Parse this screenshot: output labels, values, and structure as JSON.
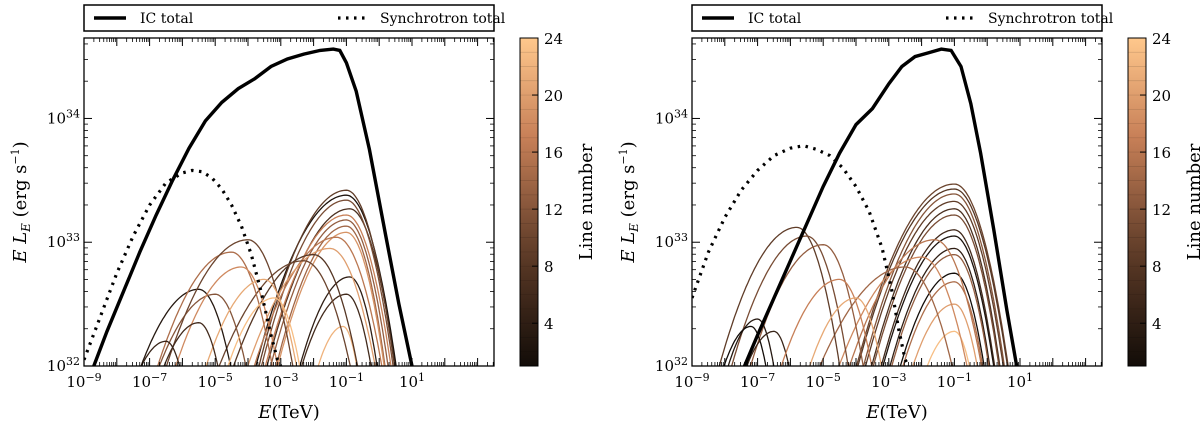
{
  "chart_data": [
    {
      "type": "line",
      "panel": "left",
      "xlabel": "E(TeV)",
      "ylabel": "E L_E (erg s^-1)",
      "xscale": "log",
      "yscale": "log",
      "xlim_log10": [
        -9,
        3.5
      ],
      "ylim_log10": [
        32,
        34.65
      ],
      "x_ticks": [
        "10^-9",
        "10^-7",
        "10^-5",
        "10^-3",
        "10^-1",
        "10^1"
      ],
      "y_ticks": [
        "10^32",
        "10^33",
        "10^34"
      ],
      "legend": {
        "placement": "top",
        "entries": [
          {
            "label": "IC total",
            "style": "solid"
          },
          {
            "label": "Synchrotron total",
            "style": "dotted"
          }
        ]
      },
      "series": [
        {
          "name": "IC total",
          "log_x": [
            -8.7,
            -8.3,
            -7.8,
            -7.3,
            -6.8,
            -6.3,
            -5.8,
            -5.3,
            -4.8,
            -4.3,
            -3.8,
            -3.3,
            -2.8,
            -2.3,
            -1.8,
            -1.4,
            -1.2,
            -1.0,
            -0.7,
            -0.3,
            0.2,
            0.6,
            1.0
          ],
          "log_y": [
            32.0,
            32.28,
            32.6,
            32.92,
            33.22,
            33.5,
            33.76,
            33.98,
            34.13,
            34.24,
            34.32,
            34.42,
            34.48,
            34.52,
            34.55,
            34.56,
            34.55,
            34.45,
            34.22,
            33.75,
            33.05,
            32.5,
            32.0
          ]
        },
        {
          "name": "Synchrotron total",
          "log_x": [
            -9.0,
            -8.5,
            -8.0,
            -7.5,
            -7.0,
            -6.5,
            -6.0,
            -5.7,
            -5.4,
            -5.1,
            -4.8,
            -4.5,
            -4.2,
            -3.9,
            -3.6,
            -3.3,
            -3.1,
            -3.0
          ],
          "log_y": [
            32.05,
            32.4,
            32.75,
            33.05,
            33.3,
            33.48,
            33.56,
            33.58,
            33.57,
            33.52,
            33.43,
            33.3,
            33.13,
            32.9,
            32.6,
            32.25,
            32.05,
            32.0
          ]
        }
      ],
      "components": [
        {
          "line": 4,
          "kind": "ic",
          "center": -0.9,
          "peak": 32.72,
          "width": 1.6
        },
        {
          "line": 7,
          "kind": "ic",
          "center": -0.9,
          "peak": 33.27,
          "width": 2.0
        },
        {
          "line": 2,
          "kind": "ic",
          "center": -1.0,
          "peak": 33.38,
          "width": 2.1
        },
        {
          "line": 9,
          "kind": "ic",
          "center": -1.0,
          "peak": 33.42,
          "width": 2.0
        },
        {
          "line": 11,
          "kind": "ic",
          "center": -1.0,
          "peak": 33.34,
          "width": 2.0
        },
        {
          "line": 6,
          "kind": "ic",
          "center": -1.0,
          "peak": 32.58,
          "width": 1.6
        },
        {
          "line": 13,
          "kind": "ic",
          "center": -1.0,
          "peak": 33.18,
          "width": 1.9
        },
        {
          "line": 14,
          "kind": "ic",
          "center": -1.0,
          "peak": 33.13,
          "width": 1.8
        },
        {
          "line": 17,
          "kind": "ic",
          "center": -1.0,
          "peak": 33.22,
          "width": 2.0
        },
        {
          "line": 19,
          "kind": "ic",
          "center": -1.0,
          "peak": 33.08,
          "width": 1.8
        },
        {
          "line": 22,
          "kind": "ic",
          "center": -1.1,
          "peak": 32.32,
          "width": 1.2
        },
        {
          "line": 16,
          "kind": "ic",
          "center": -1.3,
          "peak": 33.04,
          "width": 2.2
        },
        {
          "line": 20,
          "kind": "ic",
          "center": -1.5,
          "peak": 32.95,
          "width": 2.3
        },
        {
          "line": 8,
          "kind": "ic",
          "center": -2.0,
          "peak": 32.9,
          "width": 2.3
        },
        {
          "line": 10,
          "kind": "ic",
          "center": -2.3,
          "peak": 32.85,
          "width": 2.5
        },
        {
          "line": 3,
          "kind": "sync",
          "center": -5.5,
          "peak": 32.62,
          "width": 2.0
        },
        {
          "line": 12,
          "kind": "sync",
          "center": -5.0,
          "peak": 32.58,
          "width": 2.0
        },
        {
          "line": 15,
          "kind": "sync",
          "center": -4.5,
          "peak": 32.92,
          "width": 2.1
        },
        {
          "line": 10,
          "kind": "sync",
          "center": -4.0,
          "peak": 33.02,
          "width": 2.2
        },
        {
          "line": 18,
          "kind": "sync",
          "center": -4.2,
          "peak": 32.8,
          "width": 2.0
        },
        {
          "line": 21,
          "kind": "sync",
          "center": -3.5,
          "peak": 32.7,
          "width": 1.9
        },
        {
          "line": 6,
          "kind": "sync",
          "center": -5.5,
          "peak": 32.35,
          "width": 1.6
        },
        {
          "line": 5,
          "kind": "sync",
          "center": -6.5,
          "peak": 32.2,
          "width": 1.5
        },
        {
          "line": 23,
          "kind": "sync",
          "center": -3.2,
          "peak": 32.55,
          "width": 1.7
        }
      ],
      "colorbar": {
        "label": "Line number",
        "min": 1,
        "max": 24,
        "ticks": [
          4,
          8,
          12,
          16,
          20,
          24
        ]
      }
    },
    {
      "type": "line",
      "panel": "right",
      "xlabel": "E(TeV)",
      "ylabel": "E L_E (erg s^-1)",
      "xscale": "log",
      "yscale": "log",
      "xlim_log10": [
        -9,
        3.5
      ],
      "ylim_log10": [
        32,
        34.65
      ],
      "x_ticks": [
        "10^-9",
        "10^-7",
        "10^-5",
        "10^-3",
        "10^-1",
        "10^1"
      ],
      "y_ticks": [
        "10^32",
        "10^33",
        "10^34"
      ],
      "legend": {
        "placement": "top",
        "entries": [
          {
            "label": "IC total",
            "style": "solid"
          },
          {
            "label": "Synchrotron total",
            "style": "dotted"
          }
        ]
      },
      "series": [
        {
          "name": "IC total",
          "log_x": [
            -7.4,
            -7.0,
            -6.5,
            -6.0,
            -5.5,
            -5.0,
            -4.5,
            -4.0,
            -3.5,
            -3.0,
            -2.6,
            -2.2,
            -1.8,
            -1.4,
            -1.1,
            -0.8,
            -0.5,
            -0.2,
            0.2,
            0.6,
            0.9
          ],
          "log_y": [
            32.0,
            32.25,
            32.55,
            32.85,
            33.15,
            33.45,
            33.72,
            33.95,
            34.08,
            34.28,
            34.42,
            34.5,
            34.53,
            34.56,
            34.55,
            34.42,
            34.12,
            33.72,
            33.1,
            32.45,
            32.0
          ]
        },
        {
          "name": "Synchrotron total",
          "log_x": [
            -9.0,
            -8.5,
            -8.0,
            -7.5,
            -7.0,
            -6.5,
            -6.0,
            -5.6,
            -5.2,
            -4.8,
            -4.4,
            -4.0,
            -3.6,
            -3.2,
            -2.9,
            -2.7,
            -2.5,
            -2.4
          ],
          "log_y": [
            32.55,
            32.92,
            33.2,
            33.42,
            33.58,
            33.7,
            33.76,
            33.78,
            33.75,
            33.7,
            33.6,
            33.45,
            33.25,
            32.95,
            32.6,
            32.3,
            32.05,
            32.0
          ]
        }
      ],
      "components": [
        {
          "line": 10,
          "kind": "ic",
          "center": -1.0,
          "peak": 33.47,
          "width": 2.2
        },
        {
          "line": 8,
          "kind": "ic",
          "center": -1.0,
          "peak": 33.43,
          "width": 2.2
        },
        {
          "line": 12,
          "kind": "ic",
          "center": -1.0,
          "peak": 33.39,
          "width": 2.1
        },
        {
          "line": 9,
          "kind": "ic",
          "center": -1.0,
          "peak": 33.33,
          "width": 2.1
        },
        {
          "line": 7,
          "kind": "ic",
          "center": -1.0,
          "peak": 33.27,
          "width": 2.0
        },
        {
          "line": 11,
          "kind": "ic",
          "center": -1.0,
          "peak": 33.22,
          "width": 2.0
        },
        {
          "line": 6,
          "kind": "ic",
          "center": -1.0,
          "peak": 33.1,
          "width": 1.9
        },
        {
          "line": 2,
          "kind": "ic",
          "center": -1.0,
          "peak": 33.05,
          "width": 1.9
        },
        {
          "line": 4,
          "kind": "ic",
          "center": -1.0,
          "peak": 32.95,
          "width": 1.8
        },
        {
          "line": 13,
          "kind": "ic",
          "center": -1.0,
          "peak": 32.9,
          "width": 1.8
        },
        {
          "line": 1,
          "kind": "ic",
          "center": -1.0,
          "peak": 32.75,
          "width": 1.7
        },
        {
          "line": 15,
          "kind": "ic",
          "center": -1.0,
          "peak": 32.68,
          "width": 1.7
        },
        {
          "line": 20,
          "kind": "ic",
          "center": -1.0,
          "peak": 32.5,
          "width": 1.6
        },
        {
          "line": 23,
          "kind": "ic",
          "center": -1.0,
          "peak": 32.28,
          "width": 1.4
        },
        {
          "line": 16,
          "kind": "ic",
          "center": -1.6,
          "peak": 33.02,
          "width": 2.3
        },
        {
          "line": 18,
          "kind": "ic",
          "center": -2.0,
          "peak": 32.88,
          "width": 2.4
        },
        {
          "line": 14,
          "kind": "ic",
          "center": -2.5,
          "peak": 32.8,
          "width": 2.6
        },
        {
          "line": 9,
          "kind": "sync",
          "center": -5.8,
          "peak": 33.12,
          "width": 2.0
        },
        {
          "line": 11,
          "kind": "sync",
          "center": -5.5,
          "peak": 33.05,
          "width": 2.0
        },
        {
          "line": 13,
          "kind": "sync",
          "center": -5.0,
          "peak": 32.98,
          "width": 2.0
        },
        {
          "line": 3,
          "kind": "sync",
          "center": -7.0,
          "peak": 32.38,
          "width": 1.3
        },
        {
          "line": 1,
          "kind": "sync",
          "center": -7.2,
          "peak": 32.32,
          "width": 1.3
        },
        {
          "line": 5,
          "kind": "sync",
          "center": -6.5,
          "peak": 32.28,
          "width": 1.4
        },
        {
          "line": 17,
          "kind": "sync",
          "center": -4.5,
          "peak": 32.7,
          "width": 1.9
        },
        {
          "line": 21,
          "kind": "sync",
          "center": -4.0,
          "peak": 32.55,
          "width": 1.7
        }
      ],
      "colorbar": {
        "label": "Line number",
        "min": 1,
        "max": 24,
        "ticks": [
          4,
          8,
          12,
          16,
          20,
          24
        ]
      }
    }
  ]
}
